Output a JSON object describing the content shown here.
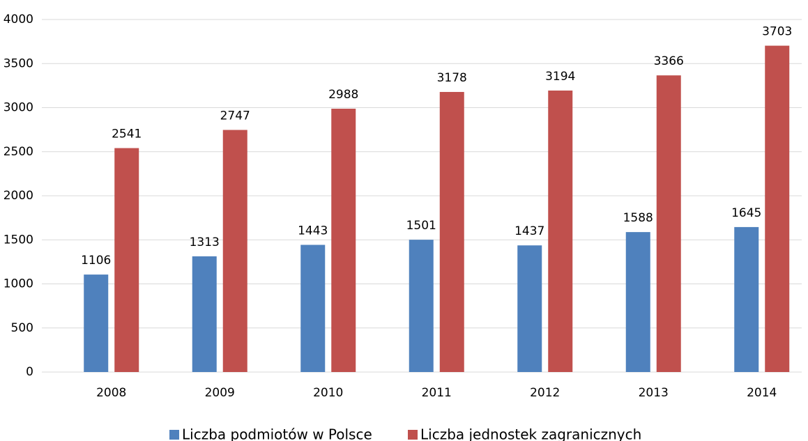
{
  "chart_data": {
    "type": "bar",
    "categories": [
      "2008",
      "2009",
      "2010",
      "2011",
      "2012",
      "2013",
      "2014"
    ],
    "series": [
      {
        "name": "Liczba podmiotów w Polsce",
        "color": "#4f81bd",
        "values": [
          1106,
          1313,
          1443,
          1501,
          1437,
          1588,
          1645
        ]
      },
      {
        "name": "Liczba jednostek zagranicznych",
        "color": "#c0504d",
        "values": [
          2541,
          2747,
          2988,
          3178,
          3194,
          3366,
          3703
        ]
      }
    ],
    "ylim": [
      0,
      4000
    ],
    "yticks": [
      0,
      500,
      1000,
      1500,
      2000,
      2500,
      3000,
      3500,
      4000
    ],
    "grid": true,
    "legend": "bottom"
  }
}
